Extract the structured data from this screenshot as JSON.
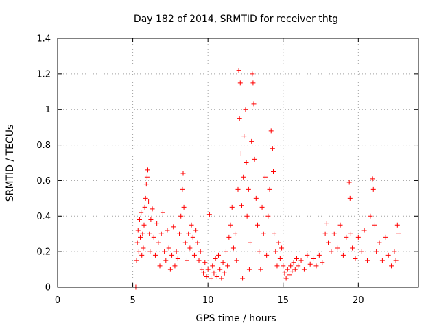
{
  "chart_data": {
    "type": "scatter",
    "title": "Day 182 of 2014, SRMTID for receiver thtg",
    "xlabel": "GPS time / hours",
    "ylabel": "SRMTID / TECUs",
    "xlim": [
      0,
      24
    ],
    "ylim": [
      0,
      1.4
    ],
    "x_ticks": [
      0,
      5,
      10,
      15,
      20
    ],
    "x_tick_labels": [
      "0",
      "5",
      "10",
      "15",
      "20"
    ],
    "y_ticks": [
      0,
      0.2,
      0.4,
      0.6,
      0.8,
      1,
      1.2,
      1.4
    ],
    "y_tick_labels": [
      "0",
      "0.2",
      "0.4",
      "0.6",
      "0.8",
      "1",
      "1.2",
      "1.4"
    ],
    "grid": true,
    "marker": "+",
    "color": "#ff0000",
    "series": [
      {
        "name": "SRMTID",
        "points": [
          [
            5.2,
            0.0
          ],
          [
            5.25,
            0.15
          ],
          [
            5.3,
            0.25
          ],
          [
            5.35,
            0.32
          ],
          [
            5.4,
            0.2
          ],
          [
            5.45,
            0.38
          ],
          [
            5.5,
            0.28
          ],
          [
            5.55,
            0.42
          ],
          [
            5.6,
            0.18
          ],
          [
            5.65,
            0.3
          ],
          [
            5.7,
            0.22
          ],
          [
            5.75,
            0.35
          ],
          [
            5.8,
            0.45
          ],
          [
            5.85,
            0.5
          ],
          [
            5.9,
            0.58
          ],
          [
            5.95,
            0.62
          ],
          [
            6.0,
            0.66
          ],
          [
            6.05,
            0.48
          ],
          [
            6.1,
            0.3
          ],
          [
            6.15,
            0.2
          ],
          [
            6.2,
            0.38
          ],
          [
            6.3,
            0.44
          ],
          [
            6.4,
            0.28
          ],
          [
            6.5,
            0.18
          ],
          [
            6.6,
            0.36
          ],
          [
            6.7,
            0.25
          ],
          [
            6.8,
            0.12
          ],
          [
            6.9,
            0.3
          ],
          [
            7.0,
            0.42
          ],
          [
            7.1,
            0.2
          ],
          [
            7.2,
            0.15
          ],
          [
            7.3,
            0.32
          ],
          [
            7.4,
            0.22
          ],
          [
            7.5,
            0.1
          ],
          [
            7.6,
            0.18
          ],
          [
            7.7,
            0.34
          ],
          [
            7.8,
            0.12
          ],
          [
            7.9,
            0.2
          ],
          [
            8.0,
            0.16
          ],
          [
            8.1,
            0.3
          ],
          [
            8.2,
            0.4
          ],
          [
            8.3,
            0.55
          ],
          [
            8.35,
            0.64
          ],
          [
            8.4,
            0.45
          ],
          [
            8.5,
            0.25
          ],
          [
            8.6,
            0.15
          ],
          [
            8.7,
            0.3
          ],
          [
            8.8,
            0.22
          ],
          [
            8.9,
            0.35
          ],
          [
            9.0,
            0.28
          ],
          [
            9.1,
            0.18
          ],
          [
            9.2,
            0.32
          ],
          [
            9.3,
            0.25
          ],
          [
            9.4,
            0.15
          ],
          [
            9.5,
            0.2
          ],
          [
            9.6,
            0.1
          ],
          [
            9.7,
            0.08
          ],
          [
            9.8,
            0.14
          ],
          [
            9.9,
            0.06
          ],
          [
            10.0,
            0.1
          ],
          [
            10.1,
            0.41
          ],
          [
            10.2,
            0.05
          ],
          [
            10.3,
            0.12
          ],
          [
            10.4,
            0.08
          ],
          [
            10.5,
            0.16
          ],
          [
            10.6,
            0.06
          ],
          [
            10.7,
            0.18
          ],
          [
            10.8,
            0.1
          ],
          [
            10.9,
            0.05
          ],
          [
            11.0,
            0.14
          ],
          [
            11.1,
            0.08
          ],
          [
            11.2,
            0.2
          ],
          [
            11.3,
            0.12
          ],
          [
            11.4,
            0.28
          ],
          [
            11.5,
            0.35
          ],
          [
            11.6,
            0.45
          ],
          [
            11.7,
            0.22
          ],
          [
            11.8,
            0.3
          ],
          [
            11.9,
            0.15
          ],
          [
            12.0,
            0.55
          ],
          [
            12.05,
            1.22
          ],
          [
            12.1,
            0.95
          ],
          [
            12.15,
            1.15
          ],
          [
            12.2,
            0.75
          ],
          [
            12.25,
            0.46
          ],
          [
            12.3,
            0.05
          ],
          [
            12.35,
            0.62
          ],
          [
            12.4,
            0.85
          ],
          [
            12.5,
            1.0
          ],
          [
            12.55,
            0.7
          ],
          [
            12.6,
            0.4
          ],
          [
            12.7,
            0.55
          ],
          [
            12.75,
            0.1
          ],
          [
            12.8,
            0.25
          ],
          [
            12.9,
            0.82
          ],
          [
            12.95,
            1.2
          ],
          [
            13.0,
            1.15
          ],
          [
            13.05,
            1.03
          ],
          [
            13.1,
            0.72
          ],
          [
            13.2,
            0.5
          ],
          [
            13.3,
            0.35
          ],
          [
            13.4,
            0.2
          ],
          [
            13.5,
            0.1
          ],
          [
            13.6,
            0.45
          ],
          [
            13.7,
            0.3
          ],
          [
            13.8,
            0.62
          ],
          [
            13.9,
            0.18
          ],
          [
            14.0,
            0.4
          ],
          [
            14.1,
            0.55
          ],
          [
            14.2,
            0.88
          ],
          [
            14.3,
            0.78
          ],
          [
            14.35,
            0.65
          ],
          [
            14.4,
            0.3
          ],
          [
            14.5,
            0.2
          ],
          [
            14.6,
            0.12
          ],
          [
            14.7,
            0.25
          ],
          [
            14.8,
            0.16
          ],
          [
            14.9,
            0.22
          ],
          [
            15.0,
            0.12
          ],
          [
            15.1,
            0.08
          ],
          [
            15.2,
            0.05
          ],
          [
            15.3,
            0.1
          ],
          [
            15.4,
            0.07
          ],
          [
            15.5,
            0.12
          ],
          [
            15.6,
            0.09
          ],
          [
            15.7,
            0.14
          ],
          [
            15.8,
            0.1
          ],
          [
            15.9,
            0.16
          ],
          [
            16.0,
            0.12
          ],
          [
            16.2,
            0.15
          ],
          [
            16.4,
            0.1
          ],
          [
            16.6,
            0.18
          ],
          [
            16.8,
            0.13
          ],
          [
            17.0,
            0.16
          ],
          [
            17.2,
            0.12
          ],
          [
            17.4,
            0.18
          ],
          [
            17.6,
            0.14
          ],
          [
            17.8,
            0.3
          ],
          [
            17.9,
            0.36
          ],
          [
            18.0,
            0.25
          ],
          [
            18.2,
            0.2
          ],
          [
            18.4,
            0.3
          ],
          [
            18.6,
            0.22
          ],
          [
            18.8,
            0.35
          ],
          [
            19.0,
            0.18
          ],
          [
            19.2,
            0.28
          ],
          [
            19.4,
            0.59
          ],
          [
            19.45,
            0.5
          ],
          [
            19.5,
            0.3
          ],
          [
            19.6,
            0.22
          ],
          [
            19.8,
            0.16
          ],
          [
            20.0,
            0.28
          ],
          [
            20.2,
            0.2
          ],
          [
            20.4,
            0.32
          ],
          [
            20.6,
            0.15
          ],
          [
            20.8,
            0.4
          ],
          [
            20.95,
            0.61
          ],
          [
            21.0,
            0.55
          ],
          [
            21.1,
            0.35
          ],
          [
            21.2,
            0.2
          ],
          [
            21.4,
            0.25
          ],
          [
            21.6,
            0.15
          ],
          [
            21.8,
            0.28
          ],
          [
            22.0,
            0.18
          ],
          [
            22.2,
            0.12
          ],
          [
            22.4,
            0.2
          ],
          [
            22.5,
            0.15
          ],
          [
            22.6,
            0.35
          ],
          [
            22.7,
            0.3
          ]
        ]
      }
    ]
  }
}
